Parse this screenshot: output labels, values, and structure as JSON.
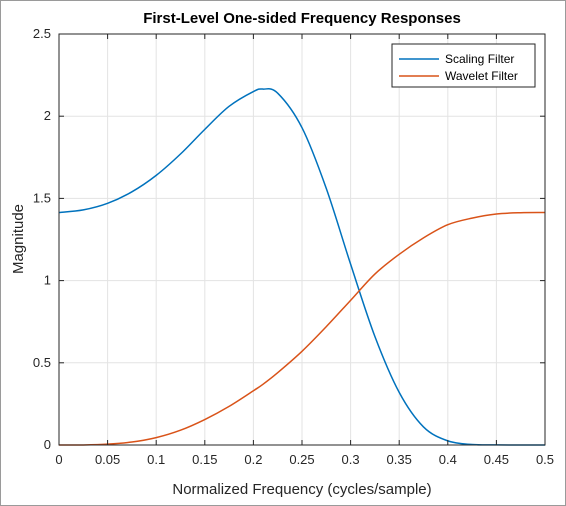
{
  "chart_data": {
    "type": "line",
    "title": "First-Level One-sided Frequency Responses",
    "xlabel": "Normalized Frequency (cycles/sample)",
    "ylabel": "Magnitude",
    "xlim": [
      0,
      0.5
    ],
    "ylim": [
      0,
      2.5
    ],
    "xticks": [
      "0",
      "0.05",
      "0.1",
      "0.15",
      "0.2",
      "0.25",
      "0.3",
      "0.35",
      "0.4",
      "0.45",
      "0.5"
    ],
    "yticks": [
      "0",
      "0.5",
      "1",
      "1.5",
      "2",
      "2.5"
    ],
    "grid": true,
    "legend_position": "top-right",
    "x": [
      0,
      0.025,
      0.05,
      0.075,
      0.1,
      0.125,
      0.15,
      0.175,
      0.2,
      0.21,
      0.225,
      0.25,
      0.275,
      0.3,
      0.325,
      0.35,
      0.375,
      0.4,
      0.425,
      0.45,
      0.475,
      0.5
    ],
    "series": [
      {
        "name": "Scaling Filter",
        "color": "#0072BD",
        "values": [
          1.414,
          1.43,
          1.47,
          1.54,
          1.64,
          1.77,
          1.92,
          2.06,
          2.15,
          2.165,
          2.14,
          1.93,
          1.56,
          1.1,
          0.66,
          0.32,
          0.11,
          0.025,
          0.003,
          0.0005,
          0.0001,
          0.0
        ]
      },
      {
        "name": "Wavelet Filter",
        "color": "#D95319",
        "values": [
          0.0,
          0.0003,
          0.005,
          0.018,
          0.045,
          0.09,
          0.155,
          0.235,
          0.33,
          0.37,
          0.44,
          0.57,
          0.72,
          0.88,
          1.04,
          1.16,
          1.26,
          1.34,
          1.38,
          1.405,
          1.413,
          1.414
        ]
      }
    ]
  }
}
